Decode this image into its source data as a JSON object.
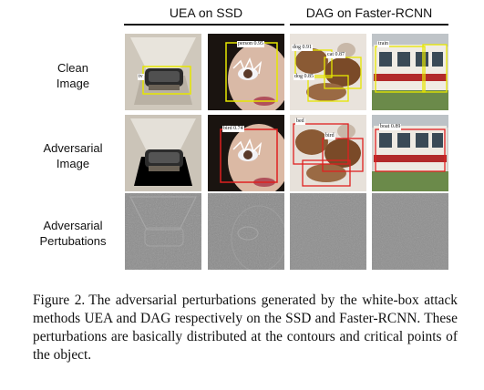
{
  "figure": {
    "column_groups": [
      {
        "title": "UEA on SSD"
      },
      {
        "title": "DAG on Faster-RCNN"
      }
    ],
    "row_labels": [
      {
        "line1": "Clean",
        "line2": "Image"
      },
      {
        "line1": "Adversarial",
        "line2": "Image"
      },
      {
        "line1": "Adversarial",
        "line2": "Pertubations"
      }
    ],
    "detection_labels": {
      "clean_1_a": "tv",
      "clean_2_a": "person 0.95",
      "clean_3_a": "dog 0.91",
      "clean_3_b": "cat 0.87",
      "clean_3_c": "dog 0.85",
      "clean_4_a": "train",
      "adv_2_a": "bird 0.74",
      "adv_3_a": "bed",
      "adv_3_b": "bird",
      "adv_4_a": "boat 0.89"
    },
    "colors": {
      "clean_box": "#e6e600",
      "adv_box": "#e02020"
    }
  },
  "caption": {
    "label": "Figure 2.",
    "text": "The adversarial perturbations generated by the white-box attack methods UEA and DAG respectively on the SSD and Faster-RCNN. These perturbations are basically distributed at the contours and critical points of the object."
  }
}
